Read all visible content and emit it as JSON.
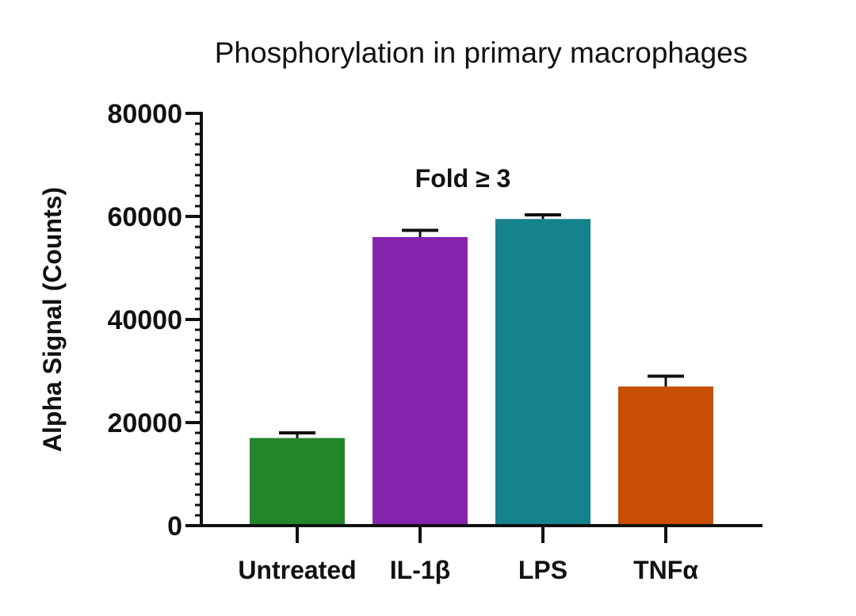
{
  "chart_data": {
    "type": "bar",
    "title": "Phosphorylation in primary macrophages",
    "ylabel": "Alpha Signal (Counts)",
    "xlabel": "",
    "ylim": [
      0,
      80000
    ],
    "yticks": [
      0,
      20000,
      40000,
      60000,
      80000
    ],
    "ytick_labels": [
      "0",
      "20000",
      "40000",
      "60000",
      "80000"
    ],
    "minor_ticks_per_major": 10,
    "categories": [
      "Untreated",
      "IL-1β",
      "LPS",
      "TNFα"
    ],
    "values": [
      17000,
      56000,
      59500,
      27000
    ],
    "errors": [
      1000,
      1300,
      800,
      2000
    ],
    "colors": [
      "#22872b",
      "#8525ae",
      "#16828b",
      "#c84e03"
    ],
    "annotation": "Fold ≥ 3",
    "grid": false,
    "legend": "none"
  }
}
